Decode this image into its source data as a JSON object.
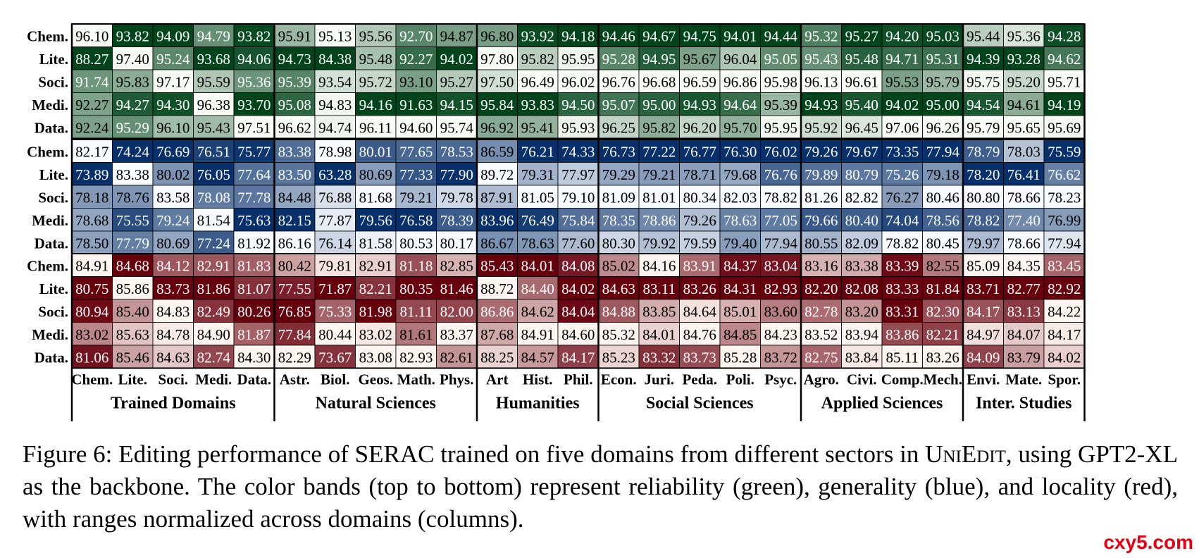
{
  "chart_data": {
    "type": "heatmap",
    "row_labels": [
      "Chem.",
      "Lite.",
      "Soci.",
      "Medi.",
      "Data."
    ],
    "columns": [
      {
        "label": "Chem.",
        "sector": 0
      },
      {
        "label": "Lite.",
        "sector": 0
      },
      {
        "label": "Soci.",
        "sector": 0
      },
      {
        "label": "Medi.",
        "sector": 0
      },
      {
        "label": "Data.",
        "sector": 0
      },
      {
        "label": "Astr.",
        "sector": 1
      },
      {
        "label": "Biol.",
        "sector": 1
      },
      {
        "label": "Geos.",
        "sector": 1
      },
      {
        "label": "Math.",
        "sector": 1
      },
      {
        "label": "Phys.",
        "sector": 1
      },
      {
        "label": "Art",
        "sector": 2
      },
      {
        "label": "Hist.",
        "sector": 2
      },
      {
        "label": "Phil.",
        "sector": 2
      },
      {
        "label": "Econ.",
        "sector": 3
      },
      {
        "label": "Juri.",
        "sector": 3
      },
      {
        "label": "Peda.",
        "sector": 3
      },
      {
        "label": "Poli.",
        "sector": 3
      },
      {
        "label": "Psyc.",
        "sector": 3
      },
      {
        "label": "Agro.",
        "sector": 4
      },
      {
        "label": "Civi.",
        "sector": 4
      },
      {
        "label": "Comp.",
        "sector": 4
      },
      {
        "label": "Mech.",
        "sector": 4
      },
      {
        "label": "Envi.",
        "sector": 5
      },
      {
        "label": "Mate.",
        "sector": 5
      },
      {
        "label": "Spor.",
        "sector": 5
      }
    ],
    "sectors": [
      "Trained Domains",
      "Natural Sciences",
      "Humanities",
      "Social Sciences",
      "Applied Sciences",
      "Inter. Studies"
    ],
    "bands": [
      {
        "metric": "reliability",
        "color": "#00441b",
        "color_light": "#f7fcf5",
        "values": [
          [
            96.1,
            93.82,
            94.09,
            94.79,
            93.82,
            95.91,
            95.13,
            95.56,
            92.7,
            94.87,
            96.8,
            93.92,
            94.18,
            94.46,
            94.67,
            94.75,
            94.01,
            94.44,
            95.32,
            95.27,
            94.2,
            95.03,
            95.44,
            95.36,
            94.28
          ],
          [
            88.27,
            97.4,
            95.24,
            93.68,
            94.06,
            94.73,
            84.38,
            95.48,
            92.27,
            94.02,
            97.8,
            95.82,
            95.95,
            95.28,
            94.95,
            95.67,
            96.04,
            95.05,
            95.43,
            95.48,
            94.71,
            95.31,
            94.39,
            93.28,
            94.62
          ],
          [
            91.74,
            95.83,
            97.17,
            95.59,
            95.36,
            95.39,
            93.54,
            95.72,
            93.1,
            95.27,
            97.5,
            96.49,
            96.02,
            96.76,
            96.68,
            96.59,
            96.86,
            95.98,
            96.13,
            96.61,
            95.53,
            95.79,
            95.75,
            95.2,
            95.71
          ],
          [
            92.27,
            94.27,
            94.3,
            96.38,
            93.7,
            95.08,
            94.83,
            94.16,
            91.63,
            94.15,
            95.84,
            93.83,
            94.5,
            95.07,
            95.0,
            94.93,
            94.64,
            95.39,
            94.93,
            95.4,
            94.02,
            95.0,
            94.54,
            94.61,
            94.19
          ],
          [
            92.24,
            95.29,
            96.1,
            95.43,
            97.51,
            96.62,
            94.74,
            96.11,
            94.6,
            95.74,
            96.92,
            95.41,
            95.93,
            96.25,
            95.82,
            96.2,
            95.7,
            95.95,
            95.92,
            96.45,
            97.06,
            96.26,
            95.79,
            95.65,
            95.69
          ]
        ]
      },
      {
        "metric": "generality",
        "color": "#08306b",
        "color_light": "#f7fbff",
        "values": [
          [
            82.17,
            74.24,
            76.69,
            76.51,
            75.77,
            83.38,
            78.98,
            80.01,
            77.65,
            78.53,
            86.59,
            76.21,
            74.33,
            76.73,
            77.22,
            76.77,
            76.3,
            76.02,
            79.26,
            79.67,
            73.35,
            77.94,
            78.79,
            78.03,
            75.59
          ],
          [
            73.89,
            83.38,
            80.02,
            76.05,
            77.64,
            83.5,
            63.28,
            80.69,
            77.33,
            77.9,
            89.72,
            79.31,
            77.97,
            79.29,
            79.21,
            78.71,
            79.68,
            76.76,
            79.89,
            80.79,
            75.26,
            79.18,
            78.2,
            76.41,
            76.62
          ],
          [
            78.18,
            78.76,
            83.58,
            78.08,
            77.78,
            84.48,
            76.88,
            81.68,
            79.21,
            79.78,
            87.91,
            81.05,
            79.1,
            81.09,
            81.01,
            80.34,
            82.03,
            78.82,
            81.26,
            82.82,
            76.27,
            80.46,
            80.8,
            78.66,
            78.23
          ],
          [
            78.68,
            75.55,
            79.24,
            81.54,
            75.63,
            82.15,
            77.87,
            79.56,
            76.58,
            78.39,
            83.96,
            76.49,
            75.84,
            78.35,
            78.86,
            79.26,
            78.63,
            77.05,
            79.66,
            80.4,
            74.04,
            78.56,
            78.82,
            77.4,
            76.99
          ],
          [
            78.5,
            77.79,
            80.69,
            77.24,
            81.92,
            86.16,
            76.14,
            81.58,
            80.53,
            80.17,
            86.67,
            78.63,
            77.6,
            80.3,
            79.92,
            79.59,
            79.4,
            77.94,
            80.55,
            82.09,
            78.82,
            80.45,
            79.97,
            78.66,
            77.94
          ]
        ]
      },
      {
        "metric": "locality",
        "color": "#67000d",
        "color_light": "#fff5f0",
        "values": [
          [
            84.91,
            84.68,
            84.12,
            82.91,
            81.83,
            80.42,
            79.81,
            82.91,
            81.18,
            82.85,
            85.43,
            84.01,
            84.08,
            85.02,
            84.16,
            83.91,
            84.37,
            83.04,
            83.16,
            83.38,
            83.39,
            82.55,
            85.09,
            84.35,
            83.45
          ],
          [
            80.75,
            85.86,
            83.73,
            81.86,
            81.07,
            77.55,
            71.87,
            82.21,
            80.35,
            81.46,
            88.72,
            84.4,
            84.02,
            84.63,
            83.11,
            83.26,
            84.31,
            82.93,
            82.2,
            82.08,
            83.33,
            81.84,
            83.71,
            82.77,
            82.92
          ],
          [
            80.94,
            85.4,
            84.83,
            82.49,
            80.26,
            76.85,
            75.33,
            81.98,
            81.11,
            82.0,
            86.86,
            84.62,
            84.04,
            84.88,
            83.85,
            84.64,
            85.01,
            83.6,
            82.78,
            83.2,
            83.31,
            82.3,
            84.17,
            83.13,
            84.22
          ],
          [
            83.02,
            85.63,
            84.78,
            84.9,
            81.87,
            77.84,
            80.44,
            83.02,
            81.61,
            83.37,
            87.68,
            84.91,
            84.6,
            85.32,
            84.01,
            84.76,
            84.85,
            84.23,
            83.52,
            83.94,
            83.86,
            82.21,
            84.97,
            84.07,
            84.17
          ],
          [
            81.06,
            85.46,
            84.63,
            82.74,
            84.3,
            82.29,
            73.67,
            83.08,
            82.93,
            82.61,
            88.25,
            84.57,
            84.17,
            85.23,
            83.32,
            83.73,
            85.28,
            83.72,
            82.75,
            83.84,
            85.11,
            83.26,
            84.09,
            83.79,
            84.02
          ]
        ]
      }
    ],
    "normalization": "per-column within each band",
    "grid": true
  },
  "caption": {
    "prefix": "Figure 6: Editing performance of SERAC trained on five domains from different sectors in ",
    "system_name": "UniEdit",
    "suffix": ", using GPT2-XL as the backbone.  The color bands (top to bottom) represent reliability (green), generality (blue), and locality (red), with ranges normalized across domains (columns)."
  },
  "watermark": "cxy5.com"
}
